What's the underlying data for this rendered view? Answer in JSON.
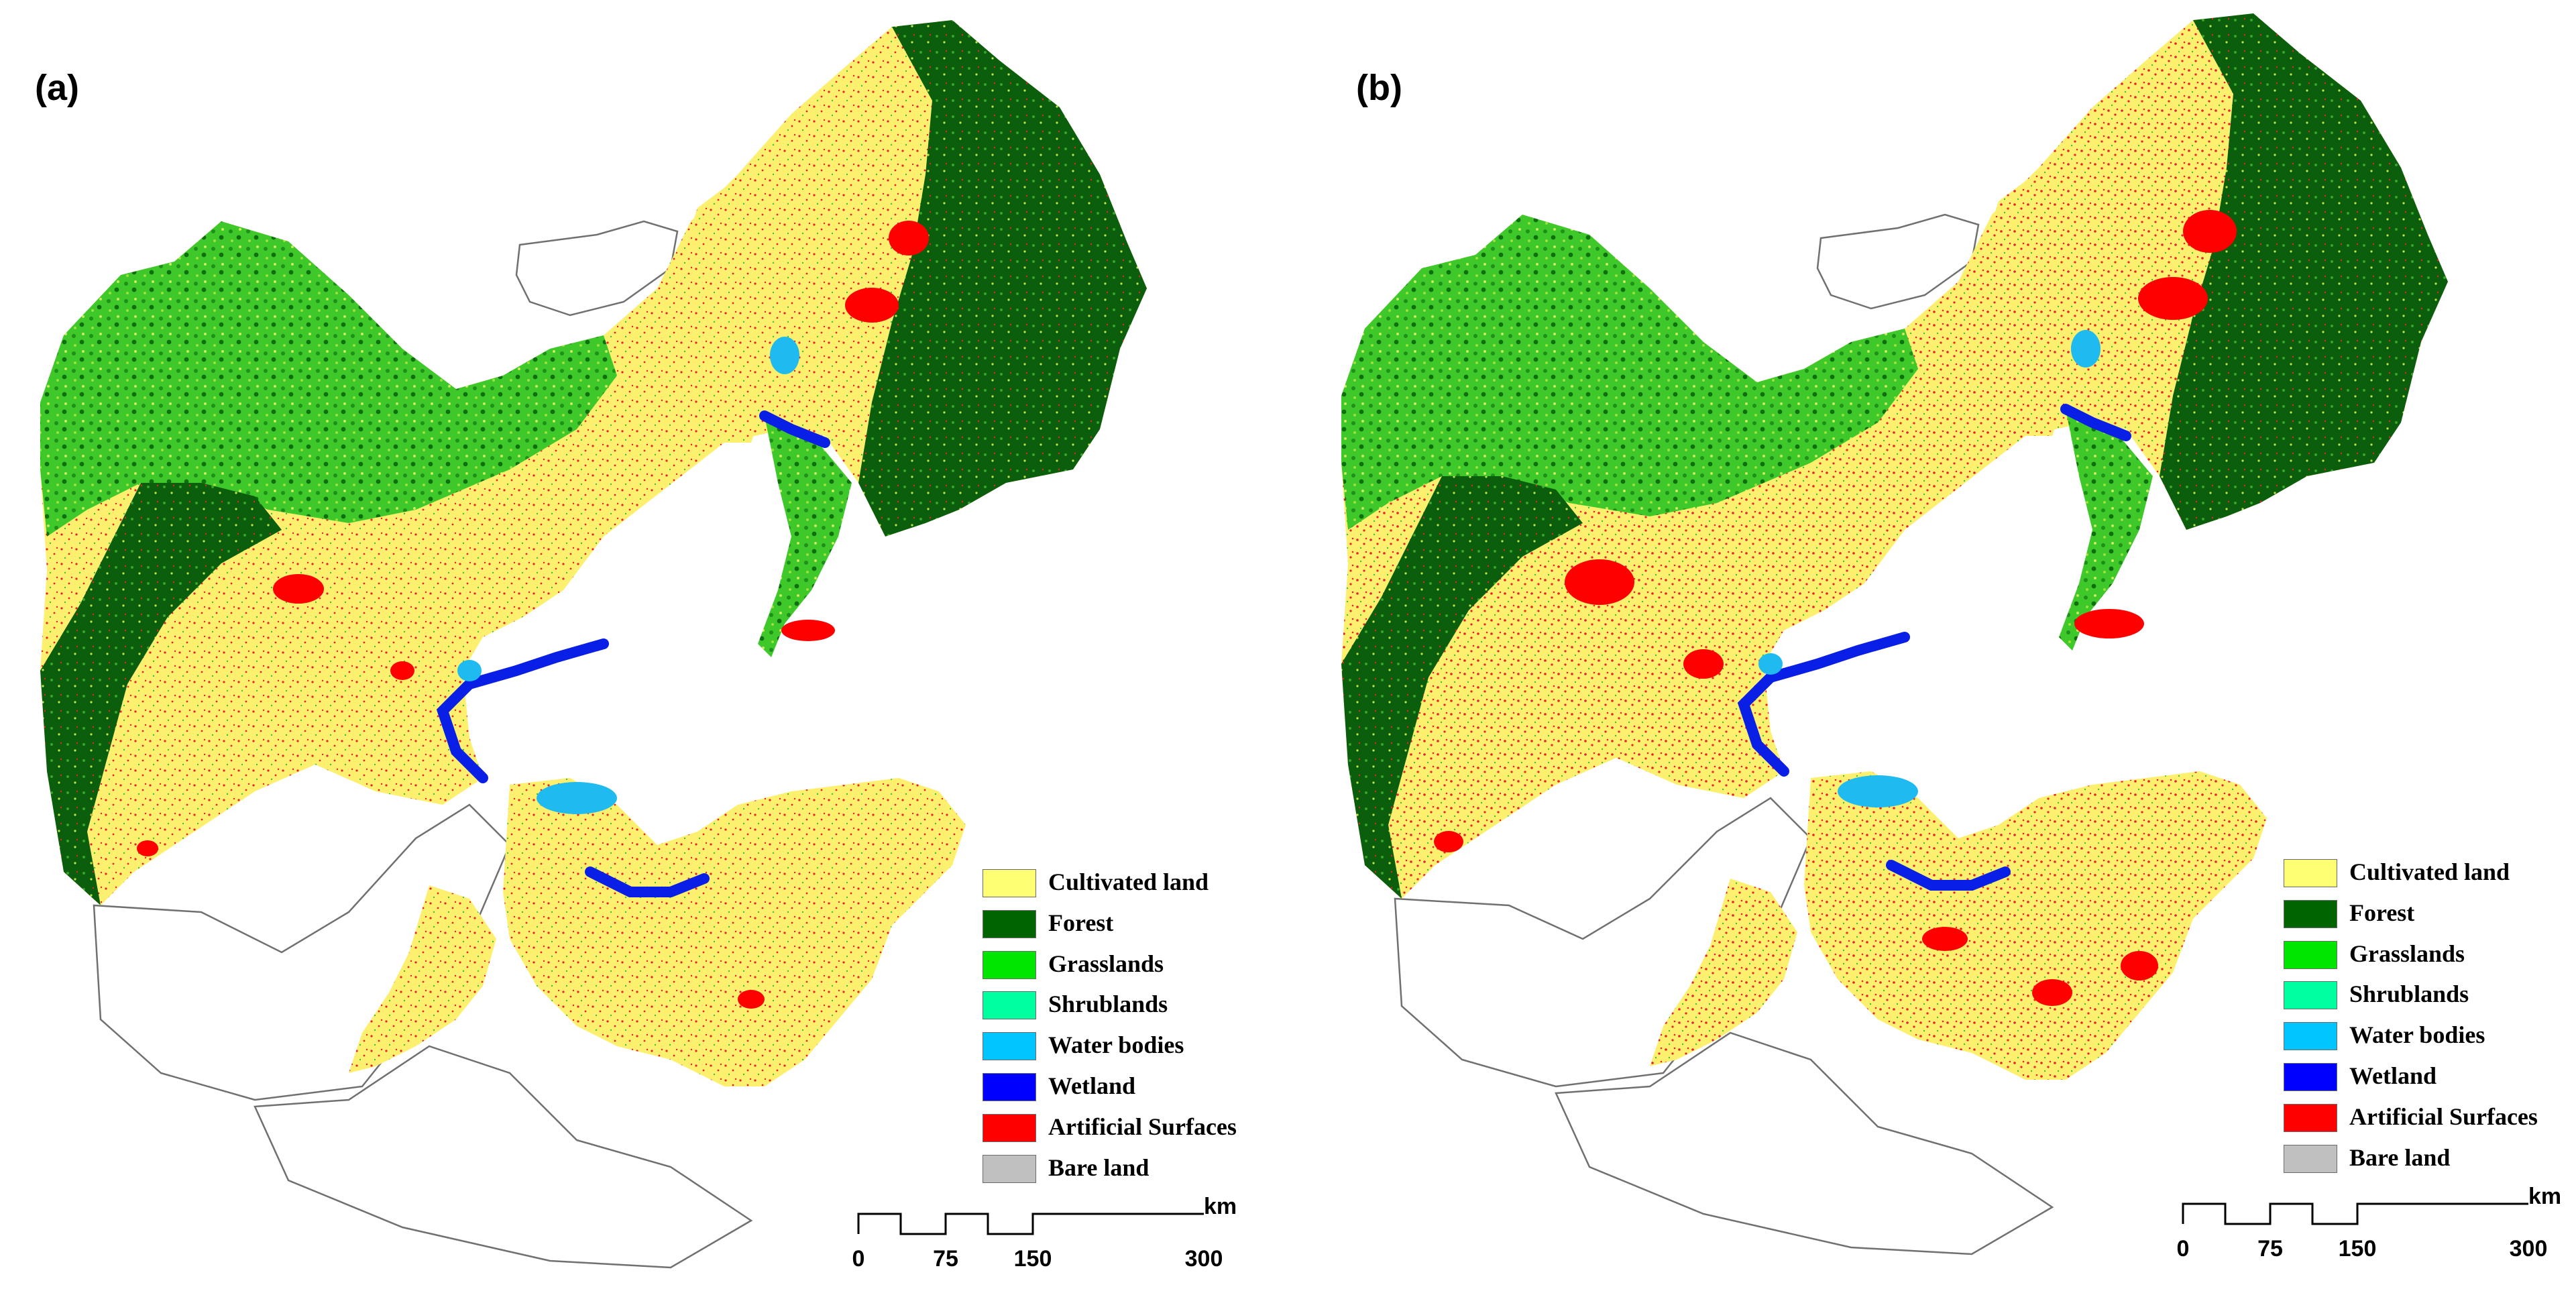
{
  "panels": [
    {
      "label": "(a)"
    },
    {
      "label": "(b)"
    }
  ],
  "legend": [
    {
      "label": "Cultivated land",
      "color": "#ffff73"
    },
    {
      "label": "Forest",
      "color": "#006400"
    },
    {
      "label": "Grasslands",
      "color": "#00e600"
    },
    {
      "label": "Shrublands",
      "color": "#00ff9f"
    },
    {
      "label": "Water bodies",
      "color": "#00c5ff"
    },
    {
      "label": "Wetland",
      "color": "#0000ff"
    },
    {
      "label": "Artificial Surfaces",
      "color": "#ff0000"
    },
    {
      "label": "Bare land",
      "color": "#c0c0c0"
    }
  ],
  "scale_bar": {
    "ticks": [
      "0",
      "75",
      "150",
      "300"
    ],
    "unit": "km"
  }
}
